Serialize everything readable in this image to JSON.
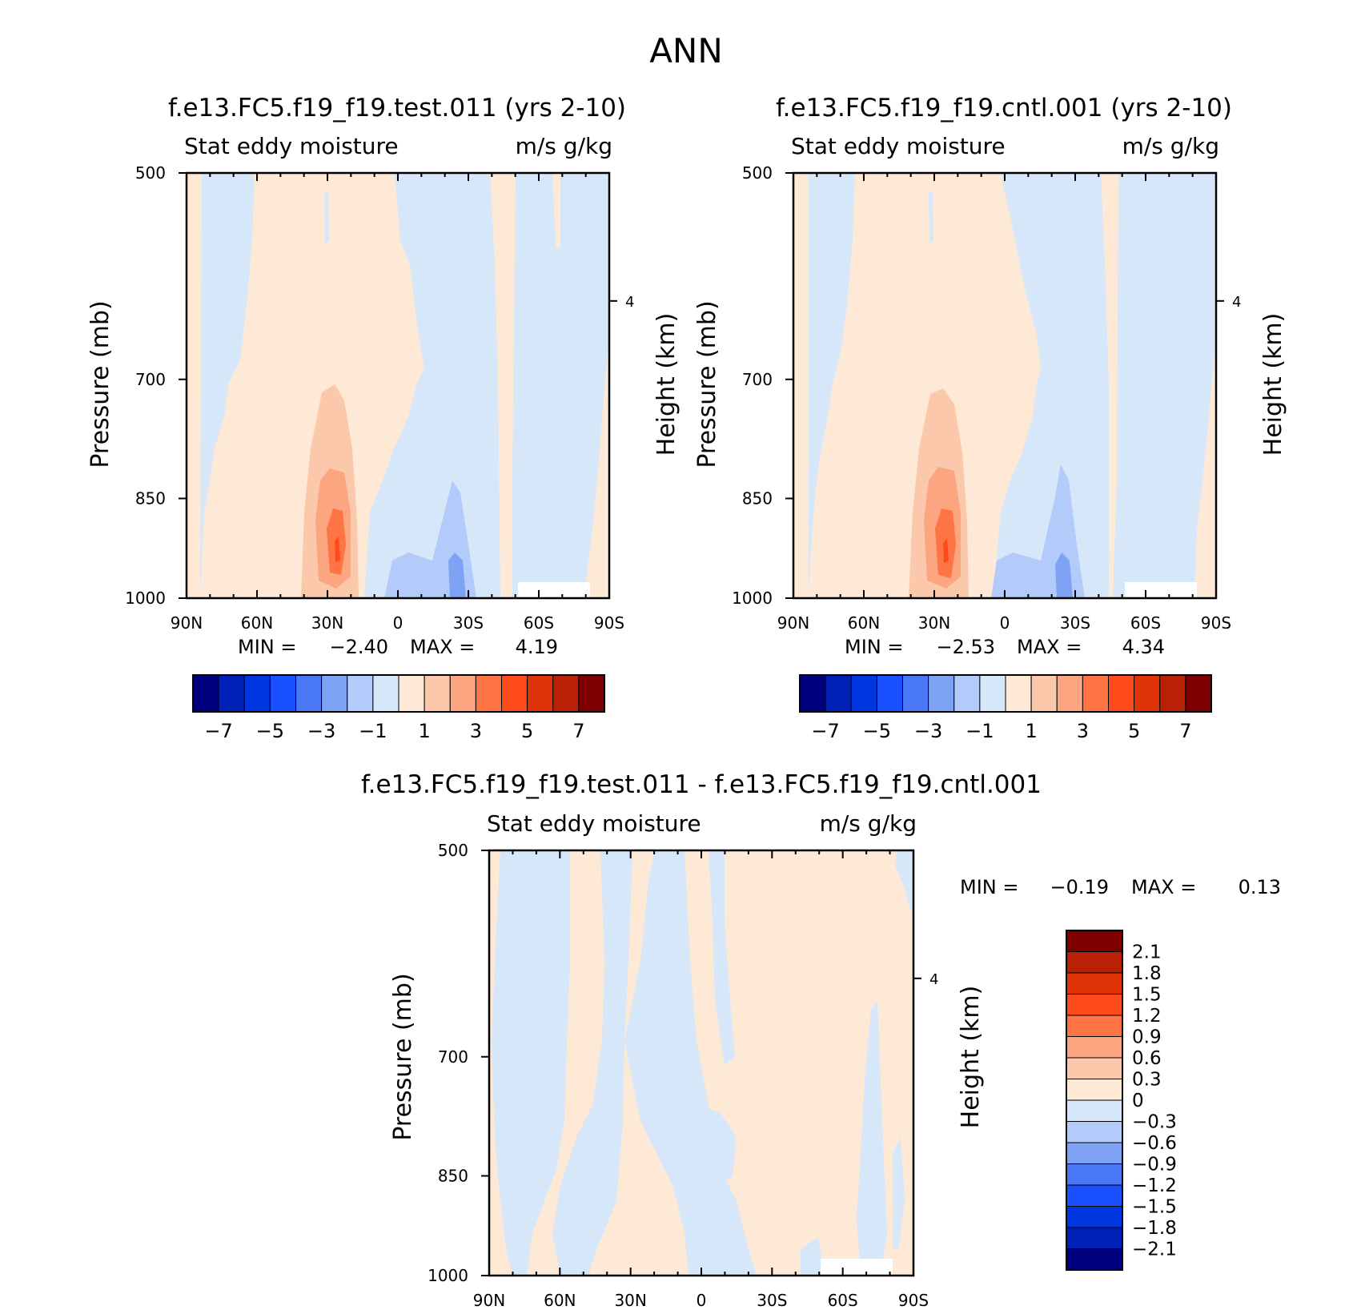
{
  "page_title": "ANN",
  "colors": {
    "main_levels": [
      "#00007f",
      "#0020b8",
      "#0037e0",
      "#1a50ff",
      "#4a78f5",
      "#7fa3f4",
      "#b2cbfa",
      "#d6e7fa",
      "#fee8d6",
      "#fcc8ac",
      "#fba581",
      "#ff7444",
      "#ff4b1c",
      "#e03408",
      "#b82105",
      "#7f0000"
    ],
    "diff_levels": [
      "#00007f",
      "#0020b8",
      "#0037e0",
      "#1a50ff",
      "#4a78f5",
      "#7fa3f4",
      "#b2cbfa",
      "#d6e7fa",
      "#fee8d6",
      "#fcc8ac",
      "#fba581",
      "#ff7444",
      "#ff4b1c",
      "#e03408",
      "#b82105",
      "#7f0000"
    ]
  },
  "chart_data": [
    {
      "type": "heatmap",
      "title": "f.e13.FC5.f19_f19.test.011 (yrs 2-10)",
      "left_title": "Stat eddy moisture",
      "right_title": "m/s g/kg",
      "ylabel": "Pressure (mb)",
      "ylabel_right": "Height (km)",
      "x_ticks": [
        "90N",
        "60N",
        "30N",
        "0",
        "30S",
        "60S",
        "90S"
      ],
      "y_ticks": [
        "500",
        "700",
        "850",
        "1000"
      ],
      "y_right_ticks": [
        "4"
      ],
      "ylim": [
        1000,
        500
      ],
      "min_label": "MIN =",
      "min_value": "-2.40",
      "max_label": "MAX =",
      "max_value": "4.19",
      "colorbar_labels": [
        "-7",
        "-5",
        "-3",
        "-1",
        "1",
        "3",
        "5",
        "7"
      ]
    },
    {
      "type": "heatmap",
      "title": "f.e13.FC5.f19_f19.cntl.001 (yrs 2-10)",
      "left_title": "Stat eddy moisture",
      "right_title": "m/s g/kg",
      "ylabel": "Pressure (mb)",
      "ylabel_right": "Height (km)",
      "x_ticks": [
        "90N",
        "60N",
        "30N",
        "0",
        "30S",
        "60S",
        "90S"
      ],
      "y_ticks": [
        "500",
        "700",
        "850",
        "1000"
      ],
      "y_right_ticks": [
        "4"
      ],
      "ylim": [
        1000,
        500
      ],
      "min_label": "MIN =",
      "min_value": "-2.53",
      "max_label": "MAX =",
      "max_value": "4.34",
      "colorbar_labels": [
        "-7",
        "-5",
        "-3",
        "-1",
        "1",
        "3",
        "5",
        "7"
      ]
    },
    {
      "type": "heatmap",
      "title": "f.e13.FC5.f19_f19.test.011 - f.e13.FC5.f19_f19.cntl.001",
      "left_title": "Stat eddy moisture",
      "right_title": "m/s g/kg",
      "ylabel": "Pressure (mb)",
      "ylabel_right": "Height (km)",
      "x_ticks": [
        "90N",
        "60N",
        "30N",
        "0",
        "30S",
        "60S",
        "90S"
      ],
      "y_ticks": [
        "500",
        "700",
        "850",
        "1000"
      ],
      "y_right_ticks": [
        "4"
      ],
      "ylim": [
        1000,
        500
      ],
      "min_label": "MIN =",
      "min_value": "-0.19",
      "max_label": "MAX =",
      "max_value": "0.13",
      "colorbar_labels": [
        "2.1",
        "1.8",
        "1.5",
        "1.2",
        "0.9",
        "0.6",
        "0.3",
        "0",
        "-0.3",
        "-0.6",
        "-0.9",
        "-1.2",
        "-1.5",
        "-1.8",
        "-2.1"
      ]
    }
  ]
}
